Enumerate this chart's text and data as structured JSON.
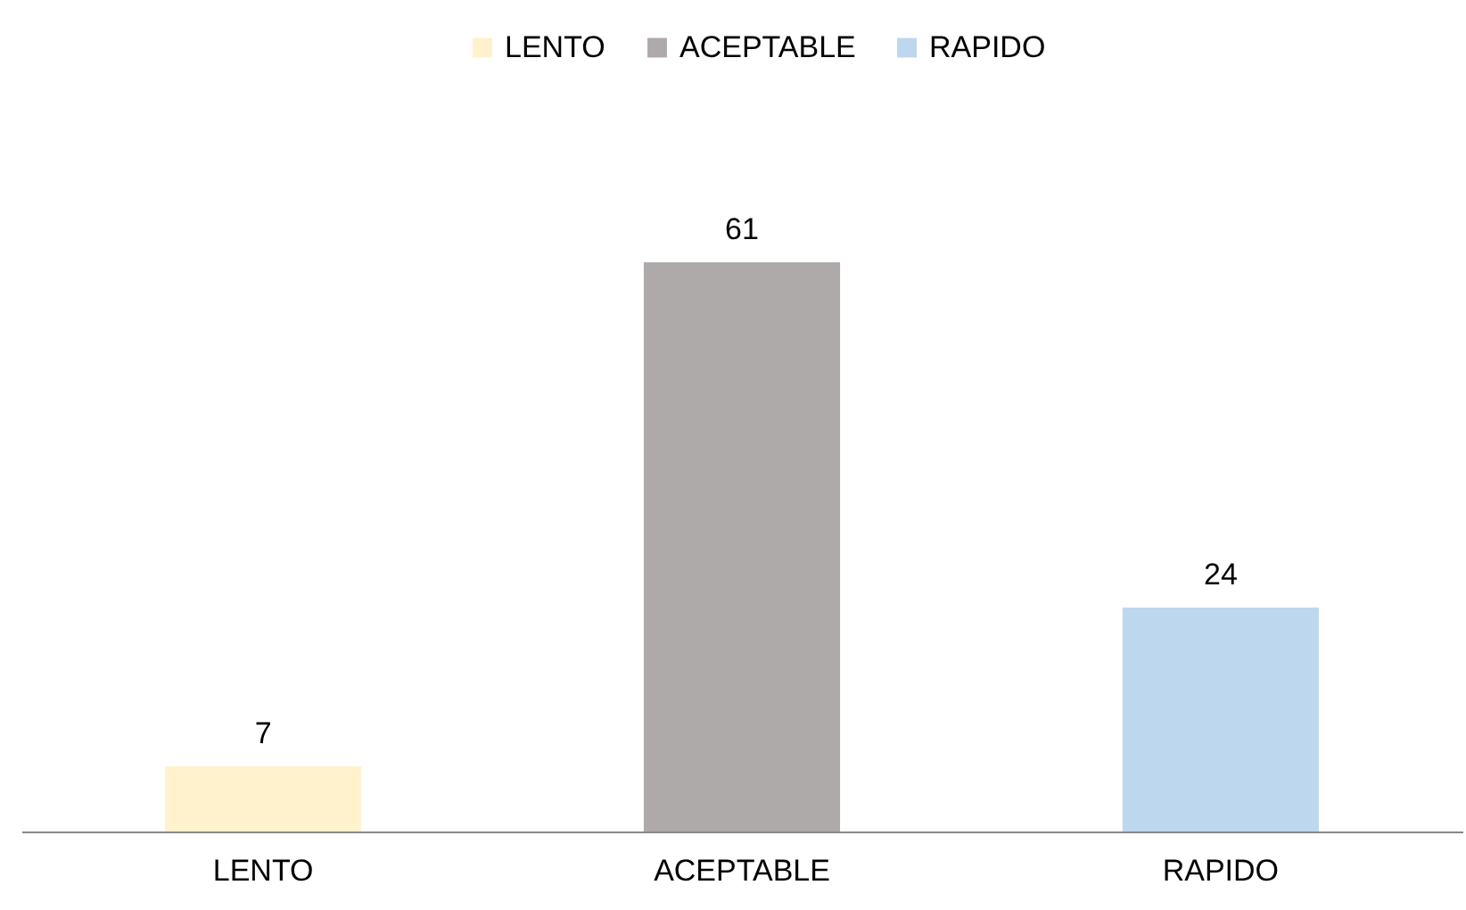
{
  "chart_data": {
    "type": "bar",
    "categories": [
      "LENTO",
      "ACEPTABLE",
      "RAPIDO"
    ],
    "series": [
      {
        "name": "LENTO",
        "color": "#fff2cc",
        "values": [
          7,
          null,
          null
        ]
      },
      {
        "name": "ACEPTABLE",
        "color": "#aeaaaa",
        "values": [
          null,
          61,
          null
        ]
      },
      {
        "name": "RAPIDO",
        "color": "#bdd7ee",
        "values": [
          null,
          null,
          24
        ]
      }
    ],
    "legend": "top",
    "data_labels": true,
    "grid": false
  }
}
